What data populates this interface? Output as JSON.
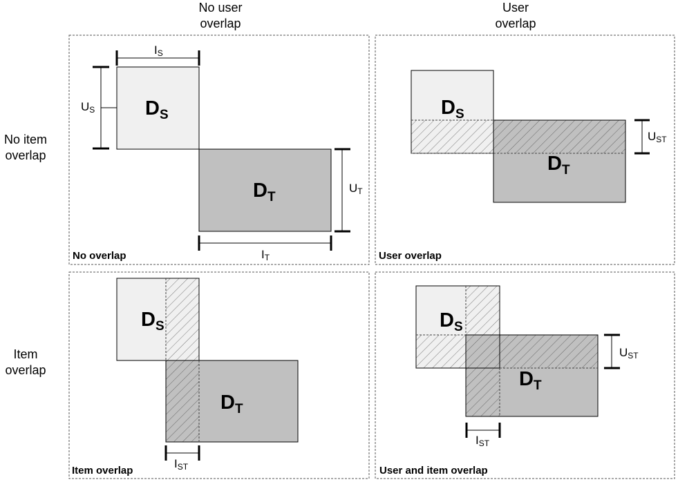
{
  "columns": {
    "no_user": [
      "No user",
      "overlap"
    ],
    "user": [
      "User",
      "overlap"
    ]
  },
  "rows": {
    "no_item": [
      "No item",
      "overlap"
    ],
    "item": [
      "Item",
      "overlap"
    ]
  },
  "panels": {
    "no_overlap": "No overlap",
    "user_overlap": "User overlap",
    "item_overlap": "Item overlap",
    "user_item_overlap": "User and item overlap"
  },
  "blocks": {
    "source": {
      "letter": "D",
      "sub": "S"
    },
    "target": {
      "letter": "D",
      "sub": "T"
    }
  },
  "dims": {
    "is": {
      "letter": "I",
      "sub": "S"
    },
    "us": {
      "letter": "U",
      "sub": "S"
    },
    "ut": {
      "letter": "U",
      "sub": "T"
    },
    "it": {
      "letter": "I",
      "sub": "T"
    },
    "ust": {
      "letter": "U",
      "sub": "ST"
    },
    "ist": {
      "letter": "I",
      "sub": "ST"
    }
  },
  "colors": {
    "source_fill": "#f0f0f0",
    "target_fill": "#c0c0c0",
    "frame": "#555555"
  }
}
